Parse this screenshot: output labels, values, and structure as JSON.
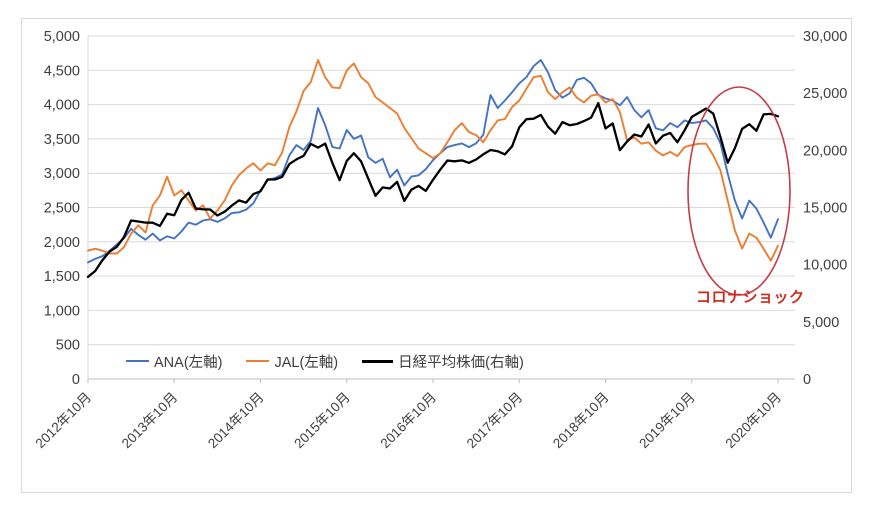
{
  "chart_data": {
    "type": "line",
    "title": "",
    "x_months": [
      "2012-10",
      "2012-11",
      "2012-12",
      "2013-01",
      "2013-02",
      "2013-03",
      "2013-04",
      "2013-05",
      "2013-06",
      "2013-07",
      "2013-08",
      "2013-09",
      "2013-10",
      "2013-11",
      "2013-12",
      "2014-01",
      "2014-02",
      "2014-03",
      "2014-04",
      "2014-05",
      "2014-06",
      "2014-07",
      "2014-08",
      "2014-09",
      "2014-10",
      "2014-11",
      "2014-12",
      "2015-01",
      "2015-02",
      "2015-03",
      "2015-04",
      "2015-05",
      "2015-06",
      "2015-07",
      "2015-08",
      "2015-09",
      "2015-10",
      "2015-11",
      "2015-12",
      "2016-01",
      "2016-02",
      "2016-03",
      "2016-04",
      "2016-05",
      "2016-06",
      "2016-07",
      "2016-08",
      "2016-09",
      "2016-10",
      "2016-11",
      "2016-12",
      "2017-01",
      "2017-02",
      "2017-03",
      "2017-04",
      "2017-05",
      "2017-06",
      "2017-07",
      "2017-08",
      "2017-09",
      "2017-10",
      "2017-11",
      "2017-12",
      "2018-01",
      "2018-02",
      "2018-03",
      "2018-04",
      "2018-05",
      "2018-06",
      "2018-07",
      "2018-08",
      "2018-09",
      "2018-10",
      "2018-11",
      "2018-12",
      "2019-01",
      "2019-02",
      "2019-03",
      "2019-04",
      "2019-05",
      "2019-06",
      "2019-07",
      "2019-08",
      "2019-09",
      "2019-10",
      "2019-11",
      "2019-12",
      "2020-01",
      "2020-02",
      "2020-03",
      "2020-04",
      "2020-05",
      "2020-06",
      "2020-07",
      "2020-08",
      "2020-09",
      "2020-10"
    ],
    "series": [
      {
        "name": "ANA(左軸)",
        "axis": "left",
        "color": "#4472C4",
        "values": [
          1700,
          1750,
          1790,
          1870,
          1960,
          2050,
          2190,
          2100,
          2030,
          2120,
          2020,
          2080,
          2050,
          2150,
          2280,
          2250,
          2310,
          2330,
          2290,
          2340,
          2420,
          2430,
          2470,
          2560,
          2750,
          2900,
          2930,
          2980,
          3260,
          3410,
          3340,
          3470,
          3950,
          3700,
          3380,
          3360,
          3630,
          3500,
          3550,
          3230,
          3150,
          3210,
          2940,
          3050,
          2820,
          2950,
          2970,
          3060,
          3190,
          3290,
          3380,
          3410,
          3435,
          3380,
          3435,
          3560,
          4140,
          3950,
          4060,
          4180,
          4310,
          4400,
          4560,
          4650,
          4470,
          4210,
          4100,
          4165,
          4360,
          4390,
          4310,
          4140,
          4090,
          4060,
          3990,
          4110,
          3920,
          3815,
          3920,
          3655,
          3625,
          3730,
          3670,
          3770,
          3730,
          3745,
          3770,
          3655,
          3435,
          2995,
          2600,
          2340,
          2600,
          2485,
          2280,
          2060,
          2330
        ]
      },
      {
        "name": "JAL(左軸)",
        "axis": "left",
        "color": "#ED7D31",
        "values": [
          1870,
          1900,
          1870,
          1830,
          1830,
          1920,
          2120,
          2240,
          2135,
          2530,
          2675,
          2950,
          2675,
          2750,
          2600,
          2455,
          2530,
          2340,
          2455,
          2600,
          2820,
          2970,
          3070,
          3145,
          3040,
          3145,
          3115,
          3300,
          3670,
          3900,
          4200,
          4330,
          4650,
          4400,
          4250,
          4240,
          4500,
          4600,
          4400,
          4310,
          4110,
          4030,
          3950,
          3870,
          3660,
          3510,
          3360,
          3290,
          3220,
          3290,
          3450,
          3625,
          3730,
          3600,
          3555,
          3450,
          3625,
          3770,
          3790,
          3965,
          4060,
          4230,
          4400,
          4420,
          4180,
          4080,
          4180,
          4250,
          4100,
          4030,
          4130,
          4150,
          4030,
          4080,
          3890,
          3480,
          3520,
          3430,
          3450,
          3330,
          3260,
          3310,
          3250,
          3380,
          3410,
          3430,
          3430,
          3260,
          3040,
          2600,
          2165,
          1900,
          2120,
          2060,
          1900,
          1725,
          1945
        ]
      },
      {
        "name": "日経平均株価(右軸)",
        "axis": "right",
        "color": "#000000",
        "values": [
          8928,
          9446,
          10395,
          11139,
          11559,
          12398,
          13861,
          13775,
          13677,
          13668,
          13389,
          14456,
          14328,
          15662,
          16291,
          14915,
          14841,
          14828,
          14304,
          14632,
          15162,
          15621,
          15425,
          16174,
          16414,
          17460,
          17451,
          17674,
          18798,
          19207,
          19520,
          20563,
          20236,
          20585,
          18890,
          17388,
          19083,
          19747,
          19034,
          17518,
          16027,
          16759,
          16666,
          17235,
          15576,
          16569,
          16887,
          16450,
          17425,
          18308,
          19114,
          19041,
          19119,
          18909,
          19197,
          19651,
          20033,
          19925,
          19646,
          20356,
          22012,
          22725,
          22765,
          23098,
          22068,
          21454,
          22468,
          22202,
          22305,
          22554,
          22865,
          24120,
          21920,
          22351,
          20015,
          20773,
          21385,
          21206,
          22259,
          20601,
          21276,
          21522,
          20704,
          21756,
          22927,
          23294,
          23657,
          23205,
          21143,
          18917,
          20194,
          21878,
          22288,
          21710,
          23140,
          23185,
          22977
        ]
      }
    ],
    "left_axis": {
      "min": 0,
      "max": 5000,
      "step": 500,
      "tick_labels": [
        "0",
        "500",
        "1,000",
        "1,500",
        "2,000",
        "2,500",
        "3,000",
        "3,500",
        "4,000",
        "4,500",
        "5,000"
      ]
    },
    "right_axis": {
      "min": 0,
      "max": 30000,
      "step": 5000,
      "tick_labels": [
        "0",
        "5,000",
        "10,000",
        "15,000",
        "20,000",
        "25,000",
        "30,000"
      ]
    },
    "x_axis": {
      "months_per_tick": 12,
      "tick_labels": [
        "2012年10月",
        "2013年10月",
        "2014年10月",
        "2015年10月",
        "2016年10月",
        "2017年10月",
        "2018年10月",
        "2019年10月",
        "2020年10月"
      ]
    },
    "grid": true,
    "legend_position": "bottom",
    "annotation": {
      "text": "コロナショック",
      "color": "#D12B1E",
      "ellipse_color": "#C43C48"
    },
    "colors": {
      "grid": "#D9D9D9",
      "axis": "#BFBFBF",
      "tick_text": "#404040"
    }
  }
}
